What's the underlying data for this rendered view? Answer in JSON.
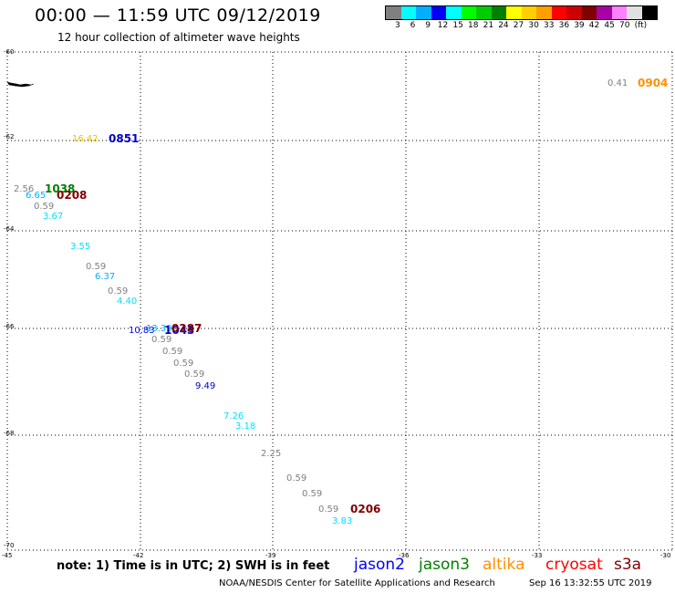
{
  "header": {
    "title": "00:00 — 11:59 UTC 09/12/2019",
    "subtitle": "12 hour collection of altimeter wave heights"
  },
  "legend": {
    "colors": [
      "#808080",
      "#00ffff",
      "#00b0ff",
      "#0000ff",
      "#00ffff",
      "#00ff00",
      "#00cc00",
      "#008000",
      "#ffff00",
      "#ffd000",
      "#ffa000",
      "#ff0000",
      "#cc0000",
      "#800000",
      "#aa00aa",
      "#ff80ff",
      "#e0e0e0",
      "#000000"
    ],
    "values": [
      "3",
      "6",
      "9",
      "12",
      "15",
      "18",
      "21",
      "24",
      "27",
      "30",
      "33",
      "36",
      "39",
      "42",
      "45",
      "70",
      "(ft)"
    ]
  },
  "axes": {
    "lat_labels": [
      "-60",
      "-62",
      "-64",
      "-66",
      "-68",
      "-70"
    ],
    "lon_labels": [
      "-45",
      "-42",
      "-39",
      "-36",
      "-33",
      "-30"
    ]
  },
  "observations": [
    {
      "text": "0.41",
      "color": "#808080",
      "size": "small"
    },
    {
      "text": "0904",
      "color": "#ff9000",
      "size": "big"
    },
    {
      "text": "16.42",
      "color": "#f0c000",
      "size": "small"
    },
    {
      "text": "0851",
      "color": "#0000c8",
      "size": "big"
    },
    {
      "text": "2.56",
      "color": "#808080",
      "size": "small"
    },
    {
      "text": "1038",
      "color": "#008000",
      "size": "big"
    },
    {
      "text": "6.65",
      "color": "#00b0ff",
      "size": "small"
    },
    {
      "text": "0208",
      "color": "#800000",
      "size": "big"
    },
    {
      "text": "0.59",
      "color": "#808080",
      "size": "small"
    },
    {
      "text": "3.67",
      "color": "#00e0ff",
      "size": "small"
    },
    {
      "text": "3.55",
      "color": "#00e0ff",
      "size": "small"
    },
    {
      "text": "0.59",
      "color": "#808080",
      "size": "small"
    },
    {
      "text": "6.37",
      "color": "#00b0ff",
      "size": "small"
    },
    {
      "text": "0.59",
      "color": "#808080",
      "size": "small"
    },
    {
      "text": "4.40",
      "color": "#00e0ff",
      "size": "small"
    },
    {
      "text": "10.83",
      "color": "#0000ff",
      "size": "small"
    },
    {
      "text": "13.39",
      "color": "#00b0ff",
      "size": "small"
    },
    {
      "text": "1043",
      "color": "#0000c8",
      "size": "big"
    },
    {
      "text": "0287",
      "color": "#800000",
      "size": "big"
    },
    {
      "text": "0.59",
      "color": "#808080",
      "size": "small"
    },
    {
      "text": "0.59",
      "color": "#808080",
      "size": "small"
    },
    {
      "text": "0.59",
      "color": "#808080",
      "size": "small"
    },
    {
      "text": "0.59",
      "color": "#808080",
      "size": "small"
    },
    {
      "text": "9.49",
      "color": "#0000c8",
      "size": "small"
    },
    {
      "text": "7.26",
      "color": "#00e0ff",
      "size": "small"
    },
    {
      "text": "3.18",
      "color": "#00e0ff",
      "size": "small"
    },
    {
      "text": "2.25",
      "color": "#808080",
      "size": "small"
    },
    {
      "text": "0.59",
      "color": "#808080",
      "size": "small"
    },
    {
      "text": "0.59",
      "color": "#808080",
      "size": "small"
    },
    {
      "text": "0.59",
      "color": "#808080",
      "size": "small"
    },
    {
      "text": "0206",
      "color": "#800000",
      "size": "big"
    },
    {
      "text": "3.83",
      "color": "#00e0ff",
      "size": "small"
    }
  ],
  "note": "note:  1) Time is in UTC;  2) SWH is in feet",
  "satellites": [
    {
      "name": "jason2",
      "color": "#0000ff"
    },
    {
      "name": "jason3",
      "color": "#008000"
    },
    {
      "name": "altika",
      "color": "#ff9000"
    },
    {
      "name": "cryosat",
      "color": "#ff0000"
    },
    {
      "name": "s3a",
      "color": "#800000"
    }
  ],
  "footer": {
    "credit": "NOAA/NESDIS Center for Satellite Applications and Research",
    "timestamp": "Sep 16 13:32:55 UTC 2019"
  }
}
